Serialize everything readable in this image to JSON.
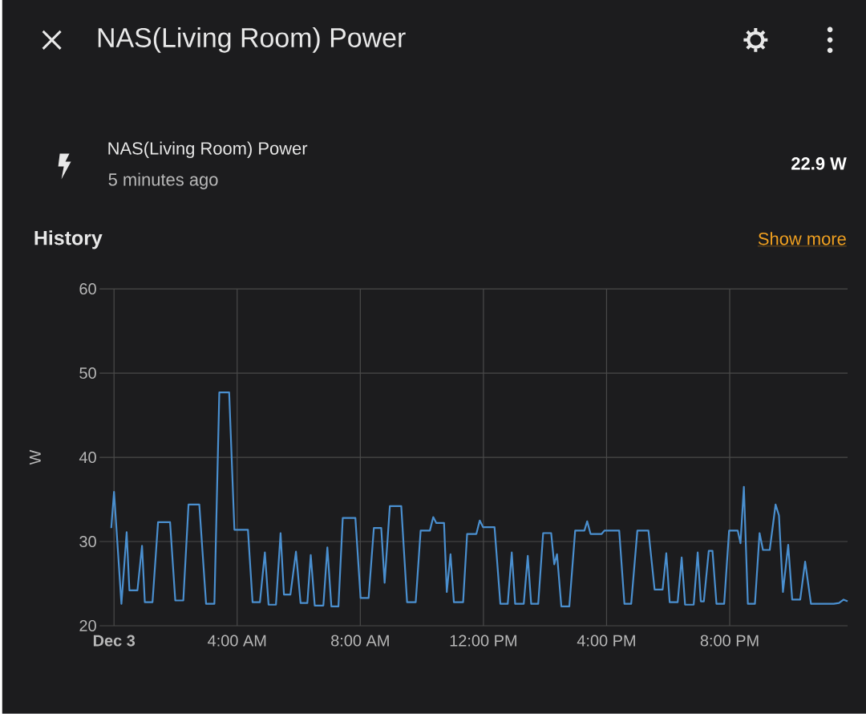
{
  "chart_data": {
    "type": "line",
    "title": "NAS(Living Room) Power",
    "annotations": [
      "NAS(Living Room) Power",
      "5 minutes ago",
      "22.9 W",
      "History",
      "Show more"
    ],
    "ylabel": "W",
    "x": [
      -0.09,
      0,
      0.24,
      0.41,
      0.5,
      0.76,
      0.91,
      1.0,
      1.25,
      1.43,
      1.82,
      1.99,
      2.25,
      2.42,
      2.77,
      2.99,
      3.26,
      3.42,
      3.74,
      3.91,
      4.35,
      4.5,
      4.74,
      4.9,
      5.02,
      5.26,
      5.41,
      5.52,
      5.73,
      5.91,
      6.06,
      6.28,
      6.39,
      6.52,
      6.8,
      6.93,
      7.06,
      7.29,
      7.43,
      7.84,
      8.01,
      8.27,
      8.44,
      8.68,
      8.79,
      8.96,
      9.33,
      9.52,
      9.8,
      9.96,
      10.26,
      10.37,
      10.47,
      10.72,
      10.81,
      10.93,
      11.04,
      11.34,
      11.47,
      11.77,
      11.88,
      11.99,
      12.36,
      12.55,
      12.79,
      12.92,
      13.03,
      13.31,
      13.44,
      13.55,
      13.78,
      13.94,
      14.2,
      14.3,
      14.39,
      14.53,
      14.79,
      14.98,
      15.28,
      15.37,
      15.48,
      15.84,
      15.93,
      16.41,
      16.58,
      16.8,
      17.0,
      17.36,
      17.56,
      17.82,
      17.94,
      18.05,
      18.31,
      18.44,
      18.55,
      18.83,
      18.96,
      19.06,
      19.16,
      19.32,
      19.44,
      19.57,
      19.82,
      19.98,
      20.26,
      20.35,
      20.46,
      20.59,
      20.82,
      20.97,
      21.08,
      21.3,
      21.49,
      21.6,
      21.73,
      21.9,
      22.03,
      22.29,
      22.45,
      22.64,
      23.38,
      23.55,
      23.7,
      23.83
    ],
    "series": [
      {
        "color": "#4a8fcf",
        "values": [
          31.6,
          35.9,
          22.6,
          31.1,
          24.2,
          24.2,
          29.5,
          22.8,
          22.8,
          32.3,
          32.3,
          23.0,
          23.0,
          34.4,
          34.4,
          22.6,
          22.6,
          47.7,
          47.7,
          31.4,
          31.4,
          22.8,
          22.8,
          28.7,
          22.5,
          22.5,
          31.0,
          23.7,
          23.7,
          28.8,
          22.7,
          22.7,
          28.4,
          22.4,
          22.4,
          29.3,
          22.3,
          22.3,
          32.8,
          32.8,
          23.3,
          23.3,
          31.6,
          31.6,
          25.1,
          34.2,
          34.2,
          22.8,
          22.8,
          31.3,
          31.3,
          32.9,
          32.2,
          32.2,
          24.0,
          28.5,
          22.8,
          22.8,
          30.9,
          30.9,
          32.5,
          31.7,
          31.7,
          22.6,
          22.6,
          28.7,
          22.6,
          22.6,
          28.3,
          22.6,
          22.6,
          31.0,
          31.0,
          27.3,
          28.5,
          22.3,
          22.3,
          31.3,
          31.3,
          32.4,
          30.9,
          30.9,
          31.3,
          31.3,
          22.6,
          22.6,
          31.3,
          31.3,
          24.3,
          24.3,
          28.6,
          22.8,
          22.8,
          28.1,
          22.5,
          22.5,
          28.7,
          22.9,
          22.9,
          28.9,
          28.9,
          22.6,
          22.6,
          31.3,
          31.3,
          29.8,
          36.5,
          22.6,
          22.6,
          31.0,
          29.0,
          29.0,
          34.4,
          33.1,
          24.0,
          29.6,
          23.1,
          23.1,
          27.6,
          22.6,
          22.6,
          22.7,
          23.1,
          22.9
        ]
      }
    ],
    "xlim": [
      -0.47,
      23.83
    ],
    "xticks": [
      {
        "value": 0,
        "label": "Dec 3"
      },
      {
        "value": 4,
        "label": "4:00 AM"
      },
      {
        "value": 8,
        "label": "8:00 AM"
      },
      {
        "value": 12,
        "label": "12:00 PM"
      },
      {
        "value": 16,
        "label": "4:00 PM"
      },
      {
        "value": 20,
        "label": "8:00 PM"
      }
    ],
    "ylim": [
      20,
      60
    ],
    "yticks": [
      20,
      30,
      40,
      50,
      60
    ],
    "grid": true,
    "marker": "none",
    "line_style": "solid"
  }
}
